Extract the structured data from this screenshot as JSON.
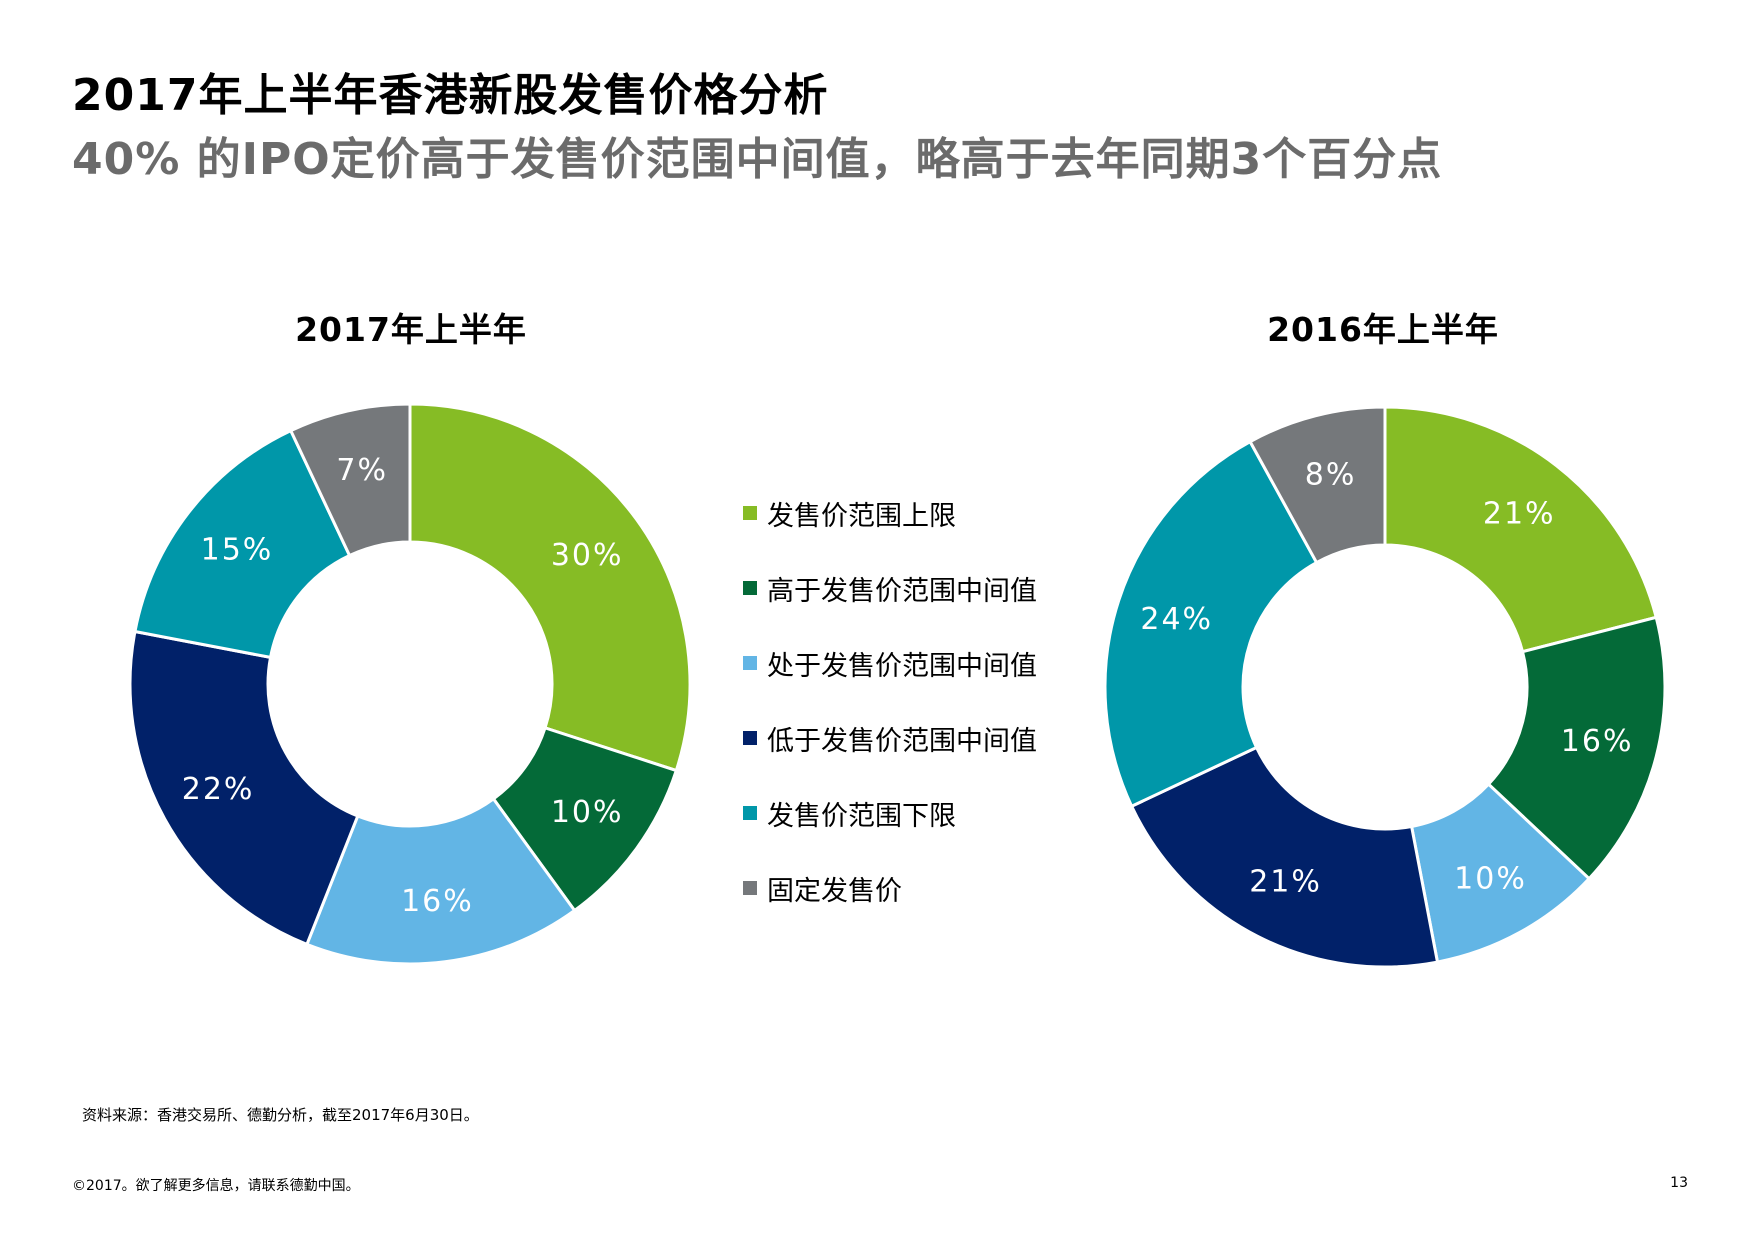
{
  "slide": {
    "title": "2017年上半年香港新股发售价格分析",
    "subtitle": "40% 的IPO定价高于发售价范围中间值，略高于去年同期3个百分点",
    "source": "资料来源：香港交易所、德勤分析，截至2017年6月30日。",
    "footer": "©2017。欲了解更多信息，请联系德勤中国。",
    "page_number": "13"
  },
  "legend": {
    "items": [
      {
        "label": "发售价范围上限",
        "color": "#86BC25"
      },
      {
        "label": "高于发售价范围中间值",
        "color": "#046A38"
      },
      {
        "label": "处于发售价范围中间值",
        "color": "#62B5E5"
      },
      {
        "label": "低于发售价范围中间值",
        "color": "#012169"
      },
      {
        "label": "发售价范围下限",
        "color": "#0097A9"
      },
      {
        "label": "固定发售价",
        "color": "#75787B"
      }
    ]
  },
  "chart_data": [
    {
      "type": "pie",
      "style": "donut",
      "title": "2017年上半年",
      "categories": [
        "发售价范围上限",
        "高于发售价范围中间值",
        "处于发售价范围中间值",
        "低于发售价范围中间值",
        "发售价范围下限",
        "固定发售价"
      ],
      "values": [
        30,
        10,
        16,
        22,
        15,
        7
      ],
      "labels": [
        "30%",
        "10%",
        "16%",
        "22%",
        "15%",
        "7%"
      ],
      "colors": [
        "#86BC25",
        "#046A38",
        "#62B5E5",
        "#012169",
        "#0097A9",
        "#75787B"
      ],
      "label_colors": [
        "#ffffff",
        "#ffffff",
        "#ffffff",
        "#ffffff",
        "#ffffff",
        "#ffffff"
      ]
    },
    {
      "type": "pie",
      "style": "donut",
      "title": "2016年上半年",
      "categories": [
        "发售价范围上限",
        "高于发售价范围中间值",
        "处于发售价范围中间值",
        "低于发售价范围中间值",
        "发售价范围下限",
        "固定发售价"
      ],
      "values": [
        21,
        16,
        10,
        21,
        24,
        8
      ],
      "labels": [
        "21%",
        "16%",
        "10%",
        "21%",
        "24%",
        "8%"
      ],
      "colors": [
        "#86BC25",
        "#046A38",
        "#62B5E5",
        "#012169",
        "#0097A9",
        "#75787B"
      ],
      "label_colors": [
        "#ffffff",
        "#ffffff",
        "#ffffff",
        "#ffffff",
        "#ffffff",
        "#ffffff"
      ]
    }
  ]
}
